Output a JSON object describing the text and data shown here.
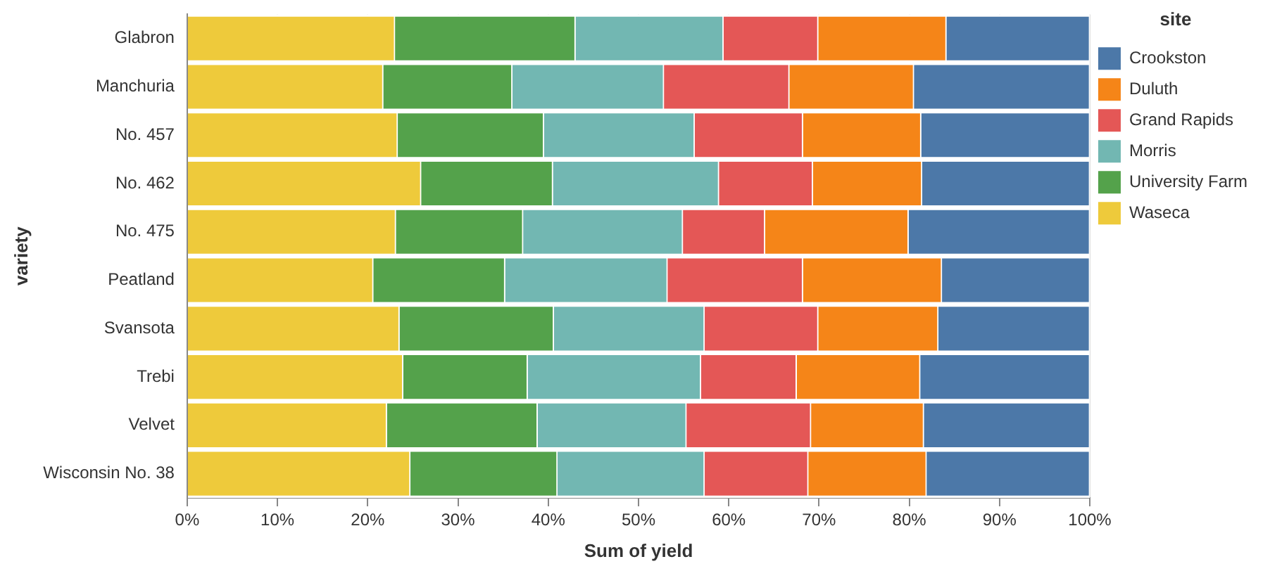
{
  "chart_data": {
    "type": "bar",
    "orientation": "horizontal",
    "stacked": true,
    "xlabel": "Sum of yield",
    "ylabel": "variety",
    "legend_title": "site",
    "legend": "right",
    "grid": "x",
    "categories": [
      "Glabron",
      "Manchuria",
      "No. 457",
      "No. 462",
      "No. 475",
      "Peatland",
      "Svansota",
      "Trebi",
      "Velvet",
      "Wisconsin No. 38"
    ],
    "xlim": [
      0,
      100
    ],
    "xticks": [
      {
        "value": 0,
        "label": "0%"
      },
      {
        "value": 10,
        "label": "10%"
      },
      {
        "value": 20,
        "label": "20%"
      },
      {
        "value": 30,
        "label": "30%"
      },
      {
        "value": 40,
        "label": "40%"
      },
      {
        "value": 50,
        "label": "50%"
      },
      {
        "value": 60,
        "label": "60%"
      },
      {
        "value": 70,
        "label": "70%"
      },
      {
        "value": 80,
        "label": "80%"
      },
      {
        "value": 90,
        "label": "90%"
      },
      {
        "value": 100,
        "label": "100%"
      }
    ],
    "series": [
      {
        "name": "Waseca",
        "color": "#eeca3b",
        "values": [
          23.0,
          21.7,
          23.3,
          25.9,
          23.1,
          20.6,
          23.5,
          23.9,
          22.1,
          24.7
        ]
      },
      {
        "name": "University Farm",
        "color": "#54a24b",
        "values": [
          20.0,
          14.3,
          16.2,
          14.6,
          14.1,
          14.6,
          17.1,
          13.8,
          16.7,
          16.3
        ]
      },
      {
        "name": "Morris",
        "color": "#72b7b2",
        "values": [
          16.4,
          16.8,
          16.7,
          18.4,
          17.7,
          18.0,
          16.7,
          19.2,
          16.5,
          16.3
        ]
      },
      {
        "name": "Grand Rapids",
        "color": "#e45756",
        "values": [
          10.5,
          13.9,
          12.0,
          10.4,
          9.1,
          15.0,
          12.6,
          10.6,
          13.8,
          11.5
        ]
      },
      {
        "name": "Duluth",
        "color": "#f58518",
        "values": [
          14.2,
          13.8,
          13.1,
          12.1,
          15.9,
          15.4,
          13.3,
          13.7,
          12.5,
          13.1
        ]
      },
      {
        "name": "Crookston",
        "color": "#4c78a8",
        "values": [
          15.9,
          19.5,
          18.7,
          18.6,
          20.1,
          16.4,
          16.8,
          18.8,
          18.4,
          18.1
        ]
      }
    ]
  }
}
